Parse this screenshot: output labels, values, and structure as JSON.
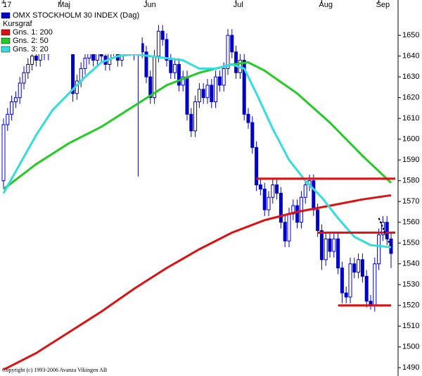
{
  "chart_data": {
    "type": "candlestick",
    "title": "OMX STOCKHOLM 30 INDEX (Dag)",
    "subtitle": "Kursgraf",
    "copyright": "Copyright (c) 1993-2006 Avanza Vikingen AB",
    "legend": "upper left",
    "grid": false,
    "up_color": "#ffffff",
    "down_color": "#0000cc",
    "edge_color": "#0000cc",
    "ylim": [
      1486,
      1667
    ],
    "yticks": [
      1490,
      1500,
      1510,
      1520,
      1530,
      1540,
      1550,
      1560,
      1570,
      1580,
      1590,
      1600,
      1610,
      1620,
      1630,
      1640,
      1650
    ],
    "xticks": [
      {
        "value": 0,
        "label": "'17"
      },
      {
        "value": 14,
        "label": "Maj"
      },
      {
        "value": 35,
        "label": "Jun"
      },
      {
        "value": 57,
        "label": "Jul"
      },
      {
        "value": 78,
        "label": "Aug"
      },
      {
        "value": 92,
        "label": "Sep"
      }
    ],
    "open": [
      1580,
      1607,
      1612,
      1618,
      1620,
      1627,
      1632,
      1636,
      1640,
      1638,
      1643,
      1641,
      1646,
      1644,
      1648,
      1645,
      1652,
      1648,
      1622,
      1628,
      1634,
      1639,
      1642,
      1638,
      1644,
      1640,
      1636,
      1643,
      1646,
      1638,
      1644,
      1650,
      1646,
      1641,
      1646,
      1642,
      1630,
      1620,
      1640,
      1652,
      1648,
      1638,
      1632,
      1636,
      1626,
      1630,
      1612,
      1604,
      1618,
      1624,
      1620,
      1626,
      1618,
      1630,
      1626,
      1634,
      1650,
      1642,
      1632,
      1638,
      1612,
      1608,
      1596,
      1578,
      1576,
      1566,
      1572,
      1578,
      1574,
      1560,
      1551,
      1564,
      1568,
      1560,
      1572,
      1578,
      1580,
      1566,
      1556,
      1542,
      1552,
      1546,
      1552,
      1538,
      1526,
      1524,
      1540,
      1536,
      1542,
      1534,
      1522,
      1520,
      1540,
      1554,
      1560,
      1552
    ],
    "high": [
      1610,
      1615,
      1621,
      1623,
      1630,
      1635,
      1639,
      1643,
      1643,
      1646,
      1646,
      1649,
      1649,
      1651,
      1651,
      1656,
      1655,
      1650,
      1631,
      1637,
      1642,
      1645,
      1645,
      1647,
      1647,
      1643,
      1646,
      1649,
      1649,
      1647,
      1653,
      1653,
      1649,
      1649,
      1649,
      1645,
      1633,
      1643,
      1655,
      1655,
      1651,
      1641,
      1639,
      1639,
      1633,
      1633,
      1615,
      1621,
      1627,
      1627,
      1629,
      1629,
      1633,
      1633,
      1637,
      1653,
      1653,
      1645,
      1641,
      1641,
      1615,
      1611,
      1599,
      1581,
      1579,
      1575,
      1581,
      1581,
      1577,
      1563,
      1567,
      1571,
      1571,
      1575,
      1581,
      1583,
      1583,
      1569,
      1559,
      1555,
      1555,
      1555,
      1555,
      1541,
      1529,
      1543,
      1543,
      1545,
      1545,
      1537,
      1525,
      1543,
      1557,
      1563,
      1563,
      1555
    ],
    "low": [
      1576,
      1604,
      1609,
      1615,
      1617,
      1624,
      1629,
      1633,
      1635,
      1635,
      1638,
      1638,
      1641,
      1641,
      1642,
      1642,
      1645,
      1618,
      1619,
      1625,
      1631,
      1636,
      1635,
      1635,
      1637,
      1633,
      1633,
      1640,
      1635,
      1635,
      1641,
      1643,
      1638,
      1582,
      1639,
      1627,
      1617,
      1617,
      1637,
      1645,
      1635,
      1629,
      1629,
      1623,
      1623,
      1609,
      1601,
      1601,
      1615,
      1617,
      1617,
      1615,
      1615,
      1623,
      1623,
      1631,
      1639,
      1629,
      1629,
      1609,
      1605,
      1593,
      1575,
      1573,
      1563,
      1563,
      1569,
      1571,
      1557,
      1548,
      1548,
      1561,
      1557,
      1557,
      1569,
      1575,
      1563,
      1553,
      1537,
      1539,
      1543,
      1543,
      1535,
      1521,
      1521,
      1521,
      1533,
      1533,
      1531,
      1519,
      1518,
      1517,
      1537,
      1551,
      1549,
      1538
    ],
    "close": [
      1607,
      1612,
      1618,
      1620,
      1627,
      1632,
      1636,
      1640,
      1638,
      1643,
      1641,
      1646,
      1644,
      1648,
      1645,
      1652,
      1648,
      1622,
      1628,
      1634,
      1639,
      1642,
      1638,
      1644,
      1640,
      1636,
      1643,
      1646,
      1638,
      1644,
      1650,
      1646,
      1641,
      1646,
      1642,
      1630,
      1620,
      1640,
      1652,
      1648,
      1638,
      1632,
      1636,
      1626,
      1630,
      1612,
      1604,
      1618,
      1624,
      1620,
      1626,
      1618,
      1630,
      1626,
      1634,
      1650,
      1642,
      1632,
      1638,
      1612,
      1608,
      1596,
      1578,
      1576,
      1566,
      1572,
      1578,
      1574,
      1560,
      1551,
      1564,
      1568,
      1560,
      1572,
      1578,
      1580,
      1566,
      1556,
      1542,
      1552,
      1546,
      1552,
      1538,
      1526,
      1524,
      1540,
      1536,
      1542,
      1534,
      1522,
      1520,
      1540,
      1554,
      1560,
      1552,
      1545
    ],
    "series": [
      {
        "name": "Gns. 1: 200",
        "color": "#dd1111",
        "x": [
          0,
          8,
          16,
          24,
          32,
          40,
          48,
          56,
          64,
          72,
          80,
          88,
          95
        ],
        "values": [
          1489,
          1497,
          1507,
          1517,
          1528,
          1538,
          1547,
          1555,
          1561,
          1565,
          1568,
          1571,
          1573
        ]
      },
      {
        "name": "Gns. 2: 50",
        "color": "#22cc22",
        "x": [
          0,
          8,
          16,
          24,
          32,
          40,
          48,
          56,
          60,
          64,
          72,
          80,
          88,
          95
        ],
        "values": [
          1576,
          1588,
          1598,
          1606,
          1616,
          1626,
          1632,
          1636,
          1637,
          1633,
          1622,
          1608,
          1592,
          1579
        ]
      },
      {
        "name": "Gns. 3: 20",
        "color": "#33dddd",
        "x": [
          0,
          4,
          8,
          12,
          16,
          20,
          24,
          28,
          32,
          36,
          40,
          44,
          48,
          52,
          56,
          59,
          62,
          66,
          70,
          74,
          78,
          82,
          86,
          90,
          95
        ],
        "values": [
          1574,
          1588,
          1602,
          1614,
          1622,
          1630,
          1637,
          1640,
          1641,
          1640,
          1639,
          1638,
          1634,
          1634,
          1636,
          1634,
          1622,
          1605,
          1590,
          1580,
          1572,
          1562,
          1553,
          1549,
          1548
        ]
      }
    ],
    "levels": [
      {
        "color": "#dd1111",
        "value": 1581,
        "x": [
          62,
          95
        ]
      },
      {
        "color": "#dd1111",
        "value": 1555,
        "x": [
          77,
          95
        ]
      },
      {
        "color": "#dd1111",
        "value": 1520,
        "x": [
          82,
          94
        ]
      }
    ],
    "trend": {
      "color": "#000000",
      "x": [
        92,
        95
      ],
      "values": [
        1562,
        1548
      ]
    }
  }
}
